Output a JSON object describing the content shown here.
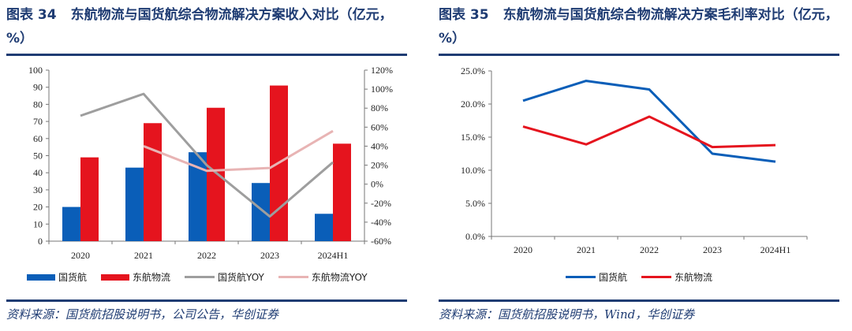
{
  "left": {
    "title_num": "图表 34",
    "title_text": "东航物流与国货航综合物流解决方案收入对比（亿元，%）",
    "source": "资料来源：国货航招股说明书，公司公告，华创证券"
  },
  "right": {
    "title_num": "图表 35",
    "title_text": "东航物流与国货航综合物流解决方案毛利率对比（亿元，%）",
    "source": "资料来源：国货航招股说明书，Wind，华创证券"
  },
  "chart_data": [
    {
      "type": "bar",
      "title": "东航物流与国货航综合物流解决方案收入对比（亿元，%）",
      "categories": [
        "2020",
        "2021",
        "2022",
        "2023",
        "2024H1"
      ],
      "ylim": [
        0,
        100
      ],
      "yticks": [
        "0",
        "10",
        "20",
        "30",
        "40",
        "50",
        "60",
        "70",
        "80",
        "90",
        "100"
      ],
      "y2lim": [
        -60,
        120
      ],
      "y2ticks": [
        "-60%",
        "-40%",
        "-20%",
        "0%",
        "20%",
        "40%",
        "60%",
        "80%",
        "100%",
        "120%"
      ],
      "series": [
        {
          "name": "国货航",
          "kind": "bar",
          "axis": "left",
          "color": "#0a5eb8",
          "values": [
            20,
            43,
            52,
            34,
            16
          ]
        },
        {
          "name": "东航物流",
          "kind": "bar",
          "axis": "left",
          "color": "#e5141e",
          "values": [
            49,
            69,
            78,
            91,
            57
          ]
        },
        {
          "name": "国货航YOY",
          "kind": "line",
          "axis": "right",
          "color": "#9e9e9e",
          "values": [
            72,
            95,
            20,
            -34,
            23
          ]
        },
        {
          "name": "东航物流YOY",
          "kind": "line",
          "axis": "right",
          "color": "#e8b4b4",
          "values": [
            null,
            40,
            14,
            17,
            56
          ]
        }
      ],
      "legend": "bottom",
      "grid": false
    },
    {
      "type": "line",
      "title": "东航物流与国货航综合物流解决方案毛利率对比（亿元，%）",
      "categories": [
        "2020",
        "2021",
        "2022",
        "2023",
        "2024H1"
      ],
      "ylim": [
        0,
        25
      ],
      "yticks": [
        "0.0%",
        "5.0%",
        "10.0%",
        "15.0%",
        "20.0%",
        "25.0%"
      ],
      "series": [
        {
          "name": "国货航",
          "color": "#0a5eb8",
          "values": [
            20.5,
            23.5,
            22.2,
            12.5,
            11.3
          ]
        },
        {
          "name": "东航物流",
          "color": "#e5141e",
          "values": [
            16.6,
            13.9,
            18.1,
            13.5,
            13.8
          ]
        }
      ],
      "legend": "bottom",
      "grid": false
    }
  ]
}
